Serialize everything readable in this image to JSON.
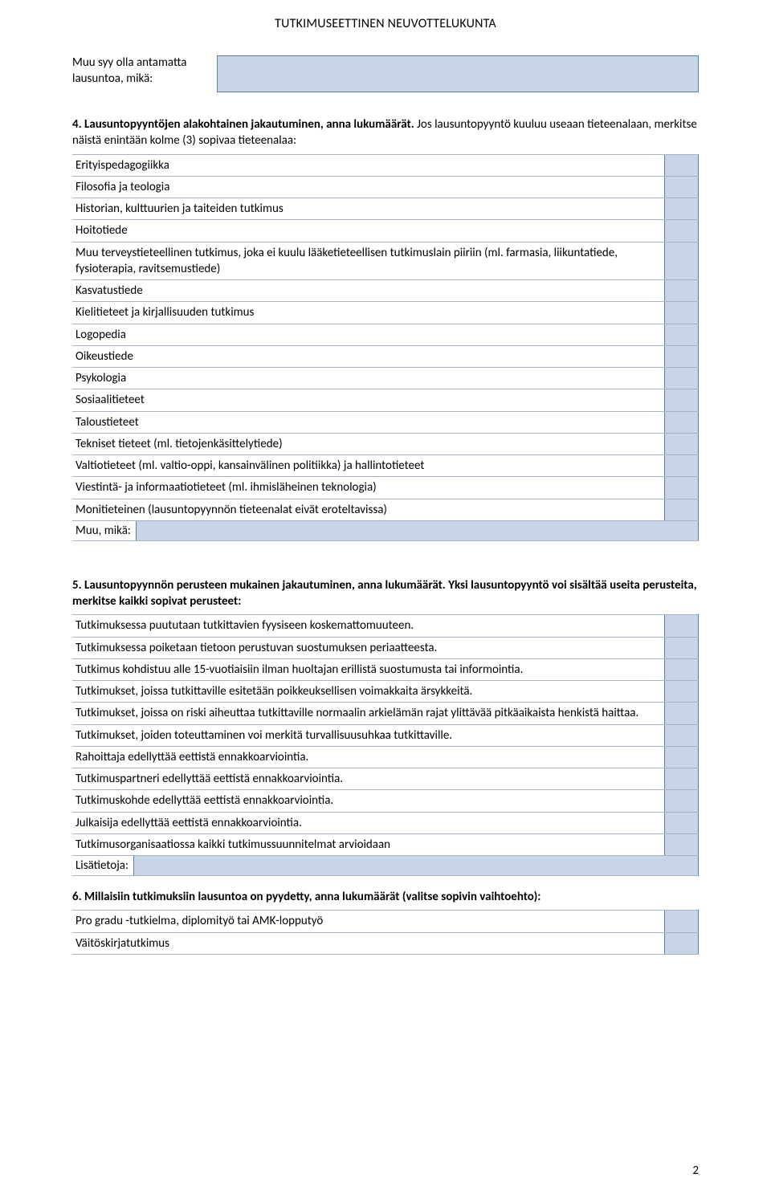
{
  "header": "TUTKIMUSEETTINEN NEUVOTTELUKUNTA",
  "reason_box": {
    "label": "Muu syy olla antamatta lausuntoa, mikä:"
  },
  "section4": {
    "heading": "4. Lausuntopyyntöjen alakohtainen jakautuminen, anna lukumäärät.",
    "subheading": "Jos lausuntopyyntö kuuluu useaan tieteenalaan, merkitse näistä enintään kolme (3) sopivaa tieteenalaa:",
    "rows": [
      "Erityispedagogiikka",
      "Filosofia ja teologia",
      "Historian, kulttuurien ja taiteiden tutkimus",
      "Hoitotiede",
      "Muu terveystieteellinen tutkimus, joka ei kuulu lääketieteellisen tutkimuslain piiriin (ml. farmasia, liikuntatiede, fysioterapia, ravitsemustiede)",
      "Kasvatustiede",
      "Kielitieteet ja kirjallisuuden tutkimus",
      "Logopedia",
      "Oikeustiede",
      "Psykologia",
      "Sosiaalitieteet",
      "Taloustieteet",
      "Tekniset tieteet (ml. tietojenkäsittelytiede)",
      "Valtiotieteet (ml. valtio-oppi, kansainvälinen politiikka) ja hallintotieteet",
      "Viestintä- ja informaatiotieteet (ml. ihmisläheinen teknologia)",
      "Monitieteinen (lausuntopyynnön tieteenalat eivät eroteltavissa)"
    ],
    "other_label": "Muu, mikä:"
  },
  "section5": {
    "heading": "5. Lausuntopyynnön perusteen mukainen jakautuminen, anna lukumäärät. Yksi lausuntopyyntö voi sisältää useita perusteita, merkitse kaikki sopivat perusteet:",
    "rows": [
      "Tutkimuksessa puututaan tutkittavien fyysiseen koskemattomuuteen.",
      "Tutkimuksessa poiketaan tietoon perustuvan suostumuksen periaatteesta.",
      "Tutkimus kohdistuu alle 15-vuotiaisiin ilman huoltajan erillistä suostumusta tai informointia.",
      "Tutkimukset, joissa tutkittaville esitetään poikkeuksellisen voimakkaita ärsykkeitä.",
      "Tutkimukset, joissa on riski aiheuttaa tutkittaville normaalin arkielämän rajat ylittävää pitkäaikaista henkistä haittaa.",
      "Tutkimukset, joiden toteuttaminen voi merkitä turvallisuusuhkaa tutkittaville.",
      "Rahoittaja edellyttää eettistä ennakkoarviointia.",
      "Tutkimuspartneri edellyttää eettistä ennakkoarviointia.",
      "Tutkimuskohde edellyttää eettistä ennakkoarviointia.",
      "Julkaisija edellyttää eettistä ennakkoarviointia.",
      "Tutkimusorganisaatiossa kaikki tutkimussuunnitelmat arvioidaan"
    ],
    "info_label": "Lisätietoja:"
  },
  "section6": {
    "heading": "6. Millaisiin tutkimuksiin lausuntoa on pyydetty, anna lukumäärät (valitse sopivin vaihtoehto):",
    "rows": [
      "Pro gradu -tutkielma, diplomityö tai AMK-lopputyö",
      "Väitöskirjatutkimus"
    ]
  },
  "page_number": "2",
  "colors": {
    "fill": "#c7d5e6",
    "border": "#5b7ea8",
    "rule": "#a8b4c2"
  }
}
